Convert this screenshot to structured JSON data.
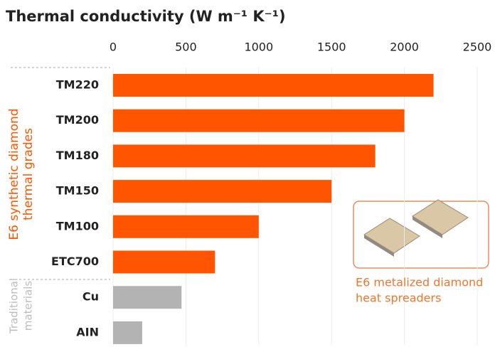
{
  "chart_data": {
    "type": "hbar",
    "title": "Thermal conductivity (W m⁻¹ K⁻¹)",
    "categories": [
      "TM220",
      "TM200",
      "TM180",
      "TM150",
      "TM100",
      "ETC700",
      "Cu",
      "AIN"
    ],
    "values": [
      2200,
      2000,
      1800,
      1500,
      1000,
      700,
      470,
      200
    ],
    "colors": [
      "#ff5500",
      "#ff5500",
      "#ff5500",
      "#ff5500",
      "#ff5500",
      "#ff5500",
      "#b3b3b3",
      "#b3b3b3"
    ],
    "xlim": [
      0,
      2500
    ],
    "xticks": [
      0,
      500,
      1000,
      1500,
      2000,
      2500
    ],
    "grid": true,
    "group_labels": [
      {
        "lines": [
          "E6 synthetic diamond",
          "thermal grades"
        ],
        "color": "#ff5500"
      },
      {
        "lines": [
          "Traditional",
          "materials"
        ],
        "color": "#bdbdbd"
      }
    ],
    "inset_caption": [
      "E6 metalized diamond",
      "heat spreaders"
    ]
  }
}
